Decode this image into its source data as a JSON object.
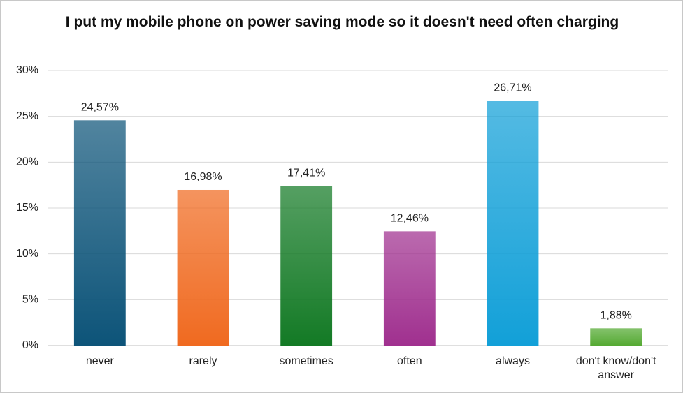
{
  "chart_data": {
    "type": "bar",
    "title": "I put my mobile phone on power saving mode so it doesn't need often charging",
    "categories": [
      "never",
      "rarely",
      "sometimes",
      "often",
      "always",
      "don't know/don't answer"
    ],
    "values": [
      24.57,
      16.98,
      17.41,
      12.46,
      26.71,
      1.88
    ],
    "value_labels": [
      "24,57%",
      "16,98%",
      "17,41%",
      "12,46%",
      "26,71%",
      "1,88%"
    ],
    "colors": [
      "#0d5479",
      "#f06a20",
      "#137a25",
      "#a0308f",
      "#12a0d8",
      "#55aa33"
    ],
    "ylim": [
      0,
      30
    ],
    "yticks": [
      {
        "value": 0,
        "label": "0%"
      },
      {
        "value": 5,
        "label": "5%"
      },
      {
        "value": 10,
        "label": "10%"
      },
      {
        "value": 15,
        "label": "15%"
      },
      {
        "value": 20,
        "label": "20%"
      },
      {
        "value": 25,
        "label": "25%"
      },
      {
        "value": 30,
        "label": "30%"
      }
    ],
    "grid": true
  }
}
